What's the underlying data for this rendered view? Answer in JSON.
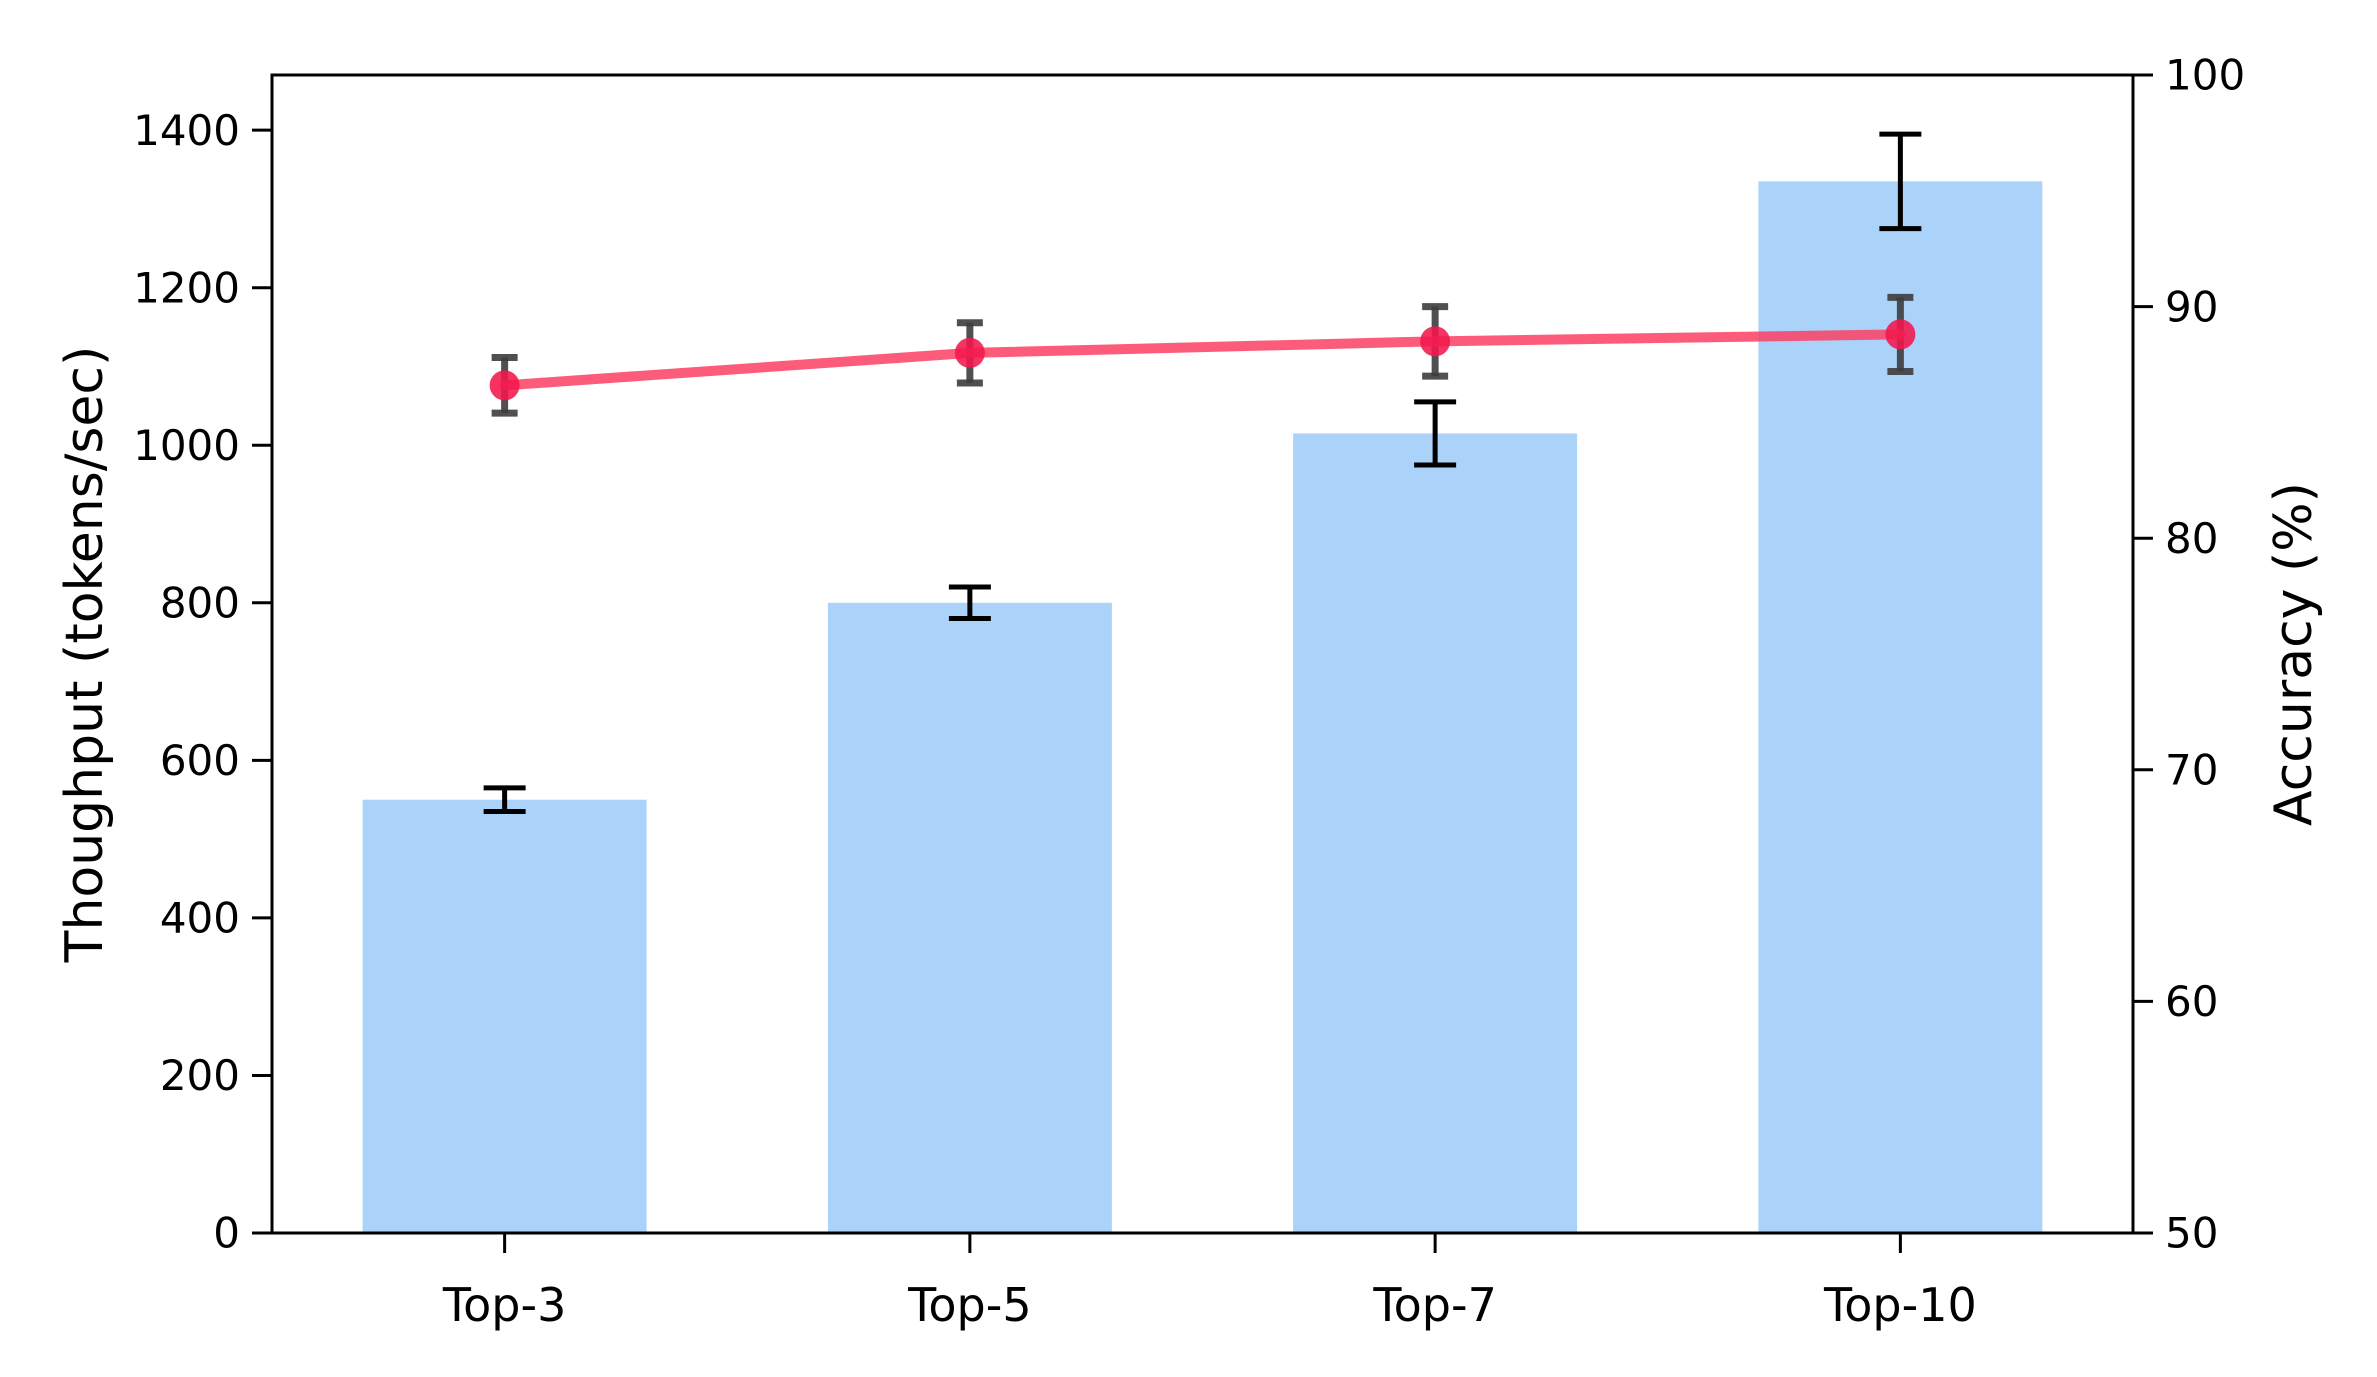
{
  "chart_data": {
    "type": "bar",
    "combo": "bar-line-dual-axis",
    "categories": [
      "Top-3",
      "Top-5",
      "Top-7",
      "Top-10"
    ],
    "series": [
      {
        "name": "Throughput",
        "type": "bar",
        "axis": "left",
        "values": [
          550,
          800,
          1015,
          1335
        ],
        "errors": [
          15,
          20,
          40,
          60
        ],
        "bar_color": "#abd3fa",
        "error_color": "#000000"
      },
      {
        "name": "Accuracy",
        "type": "line",
        "axis": "right",
        "values": [
          86.6,
          88.0,
          88.5,
          88.8
        ],
        "errors": [
          1.2,
          1.3,
          1.5,
          1.6
        ],
        "line_color": "#fb3f63",
        "marker_color": "#f3174d",
        "error_color": "#3d3d3d"
      }
    ],
    "left_axis": {
      "label": "Thoughput (tokens/sec)",
      "ticks": [
        0,
        200,
        400,
        600,
        800,
        1000,
        1200,
        1400
      ],
      "lim": [
        0,
        1470
      ]
    },
    "right_axis": {
      "label": "Accuracy (%)",
      "ticks": [
        50,
        60,
        70,
        80,
        90,
        100
      ],
      "lim": [
        50,
        100
      ]
    },
    "title": "",
    "grid": false,
    "legend_position": "none",
    "background_color": "#ffffff",
    "spine_color": "#000000"
  }
}
